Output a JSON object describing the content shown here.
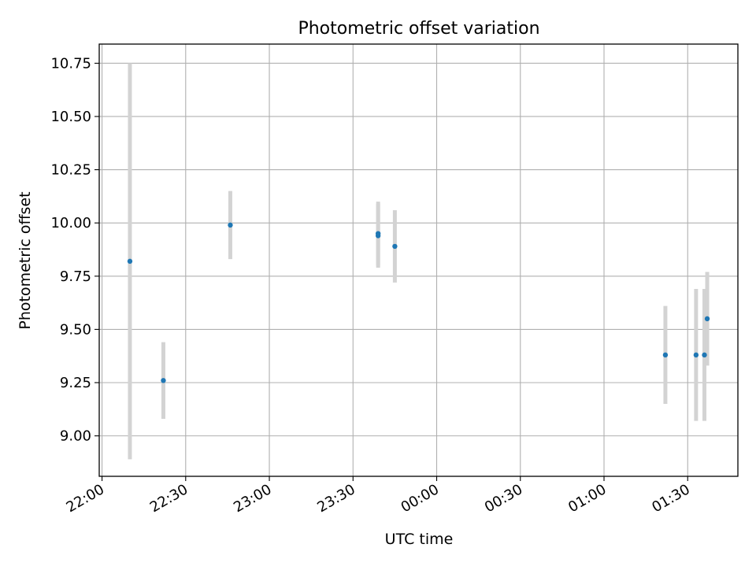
{
  "chart_data": {
    "type": "scatter",
    "title": "Photometric offset variation",
    "xlabel": "UTC time",
    "ylabel": "Photometric offset",
    "x_unit": "time of day (UTC), night spanning midnight",
    "x_ticks": [
      "22:00",
      "22:30",
      "23:00",
      "23:30",
      "00:00",
      "00:30",
      "01:00",
      "01:30"
    ],
    "y_ticks": [
      "9.00",
      "9.25",
      "9.50",
      "9.75",
      "10.00",
      "10.25",
      "10.50",
      "10.75"
    ],
    "xlim": [
      "21:59",
      "01:48"
    ],
    "ylim": [
      8.81,
      10.84
    ],
    "grid": true,
    "series": [
      {
        "marker_color": "#1f77b4",
        "errorbar_color": "#d3d3d3",
        "points": [
          {
            "x": "22:10",
            "y": 9.82,
            "err": 0.93
          },
          {
            "x": "22:22",
            "y": 9.26,
            "err": 0.18
          },
          {
            "x": "22:46",
            "y": 9.99,
            "err": 0.16
          },
          {
            "x": "23:39",
            "y": 9.94,
            "err": 0.15
          },
          {
            "x": "23:39",
            "y": 9.95,
            "err": 0.15
          },
          {
            "x": "23:45",
            "y": 9.89,
            "err": 0.17
          },
          {
            "x": "01:22",
            "y": 9.38,
            "err": 0.23
          },
          {
            "x": "01:33",
            "y": 9.38,
            "err": 0.31
          },
          {
            "x": "01:36",
            "y": 9.38,
            "err": 0.31
          },
          {
            "x": "01:37",
            "y": 9.55,
            "err": 0.22
          }
        ]
      }
    ]
  }
}
